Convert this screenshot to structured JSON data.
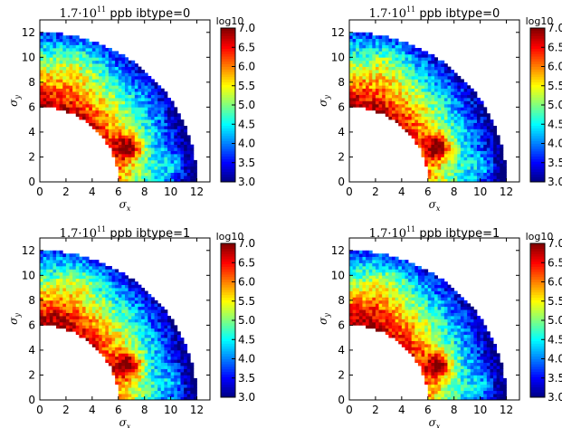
{
  "chart_data": [
    {
      "type": "heatmap",
      "title": {
        "math": "1.7·10",
        "sup": "11",
        "text": "ppb ibtype=0"
      },
      "xlabel": "σx",
      "ylabel": "σy",
      "xlim": [
        0,
        13
      ],
      "ylim": [
        0,
        13
      ],
      "xticks": [
        0,
        2,
        4,
        6,
        8,
        10,
        12
      ],
      "yticks": [
        0,
        2,
        4,
        6,
        8,
        10,
        12
      ],
      "domain": {
        "shape": "quarter-annulus",
        "inner_radius": 6,
        "outer_radius": 12
      },
      "colorbar": {
        "label": "log10",
        "range": [
          3.0,
          7.0
        ],
        "ticks": [
          "3.0",
          "3.5",
          "4.0",
          "4.5",
          "5.0",
          "5.5",
          "6.0",
          "6.5",
          "7.0"
        ]
      }
    },
    {
      "type": "heatmap",
      "title": {
        "math": "1.7·10",
        "sup": "11",
        "text": "ppb ibtype=0"
      },
      "xlabel": "σx",
      "ylabel": "σy",
      "xlim": [
        0,
        13
      ],
      "ylim": [
        0,
        13
      ],
      "xticks": [
        0,
        2,
        4,
        6,
        8,
        10,
        12
      ],
      "yticks": [
        0,
        2,
        4,
        6,
        8,
        10,
        12
      ],
      "domain": {
        "shape": "quarter-annulus",
        "inner_radius": 6,
        "outer_radius": 12
      },
      "colorbar": {
        "label": "log10",
        "range": [
          3.0,
          7.0
        ],
        "ticks": [
          "3.0",
          "3.5",
          "4.0",
          "4.5",
          "5.0",
          "5.5",
          "6.0",
          "6.5",
          "7.0"
        ]
      }
    },
    {
      "type": "heatmap",
      "title": {
        "math": "1.7·10",
        "sup": "11",
        "text": "ppb ibtype=1"
      },
      "xlabel": "σx",
      "ylabel": "σy",
      "xlim": [
        0,
        13
      ],
      "ylim": [
        0,
        13
      ],
      "xticks": [
        0,
        2,
        4,
        6,
        8,
        10,
        12
      ],
      "yticks": [
        0,
        2,
        4,
        6,
        8,
        10,
        12
      ],
      "domain": {
        "shape": "quarter-annulus",
        "inner_radius": 6,
        "outer_radius": 12
      },
      "colorbar": {
        "label": "log10",
        "range": [
          3.0,
          7.0
        ],
        "ticks": [
          "3.0",
          "3.5",
          "4.0",
          "4.5",
          "5.0",
          "5.5",
          "6.0",
          "6.5",
          "7.0"
        ]
      }
    },
    {
      "type": "heatmap",
      "title": {
        "math": "1.7·10",
        "sup": "11",
        "text": "ppb ibtype=1"
      },
      "xlabel": "σx",
      "ylabel": "σy",
      "xlim": [
        0,
        13
      ],
      "ylim": [
        0,
        13
      ],
      "xticks": [
        0,
        2,
        4,
        6,
        8,
        10,
        12
      ],
      "yticks": [
        0,
        2,
        4,
        6,
        8,
        10,
        12
      ],
      "domain": {
        "shape": "quarter-annulus",
        "inner_radius": 6,
        "outer_radius": 12
      },
      "colorbar": {
        "label": "log10",
        "range": [
          3.0,
          7.0
        ],
        "ticks": [
          "3.0",
          "3.5",
          "4.0",
          "4.5",
          "5.0",
          "5.5",
          "6.0",
          "6.5",
          "7.0"
        ]
      }
    }
  ]
}
